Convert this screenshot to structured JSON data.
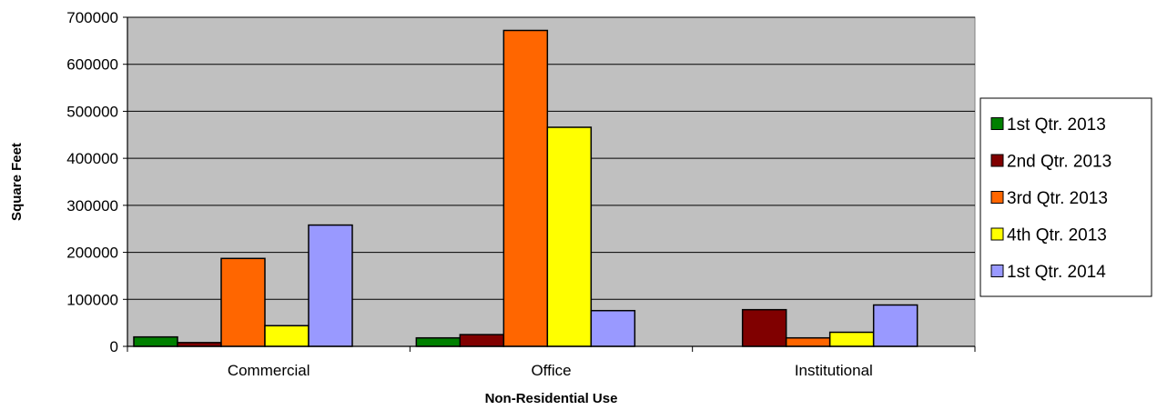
{
  "chart_data": {
    "type": "bar",
    "title": "",
    "xlabel": "Non-Residential Use",
    "ylabel": "Square Feet",
    "ylim": [
      0,
      700000
    ],
    "yticks": [
      "0",
      "100000",
      "200000",
      "300000",
      "400000",
      "500000",
      "600000",
      "700000"
    ],
    "grid": true,
    "legend_position": "right",
    "categories": [
      "Commercial",
      "Office",
      "Institutional"
    ],
    "series": [
      {
        "name": "1st Qtr. 2013",
        "color": "#008000",
        "values": [
          20000,
          18000,
          0
        ]
      },
      {
        "name": "2nd Qtr. 2013",
        "color": "#800000",
        "values": [
          8000,
          25000,
          78000
        ]
      },
      {
        "name": "3rd Qtr. 2013",
        "color": "#FF6600",
        "values": [
          187000,
          672000,
          18000
        ]
      },
      {
        "name": "4th Qtr. 2013",
        "color": "#FFFF00",
        "values": [
          44000,
          466000,
          30000
        ]
      },
      {
        "name": "1st Qtr. 2014",
        "color": "#9999FF",
        "values": [
          258000,
          76000,
          88000
        ]
      }
    ],
    "colors": {
      "plot_background": "#C0C0C0",
      "gridline": "#000000"
    }
  }
}
